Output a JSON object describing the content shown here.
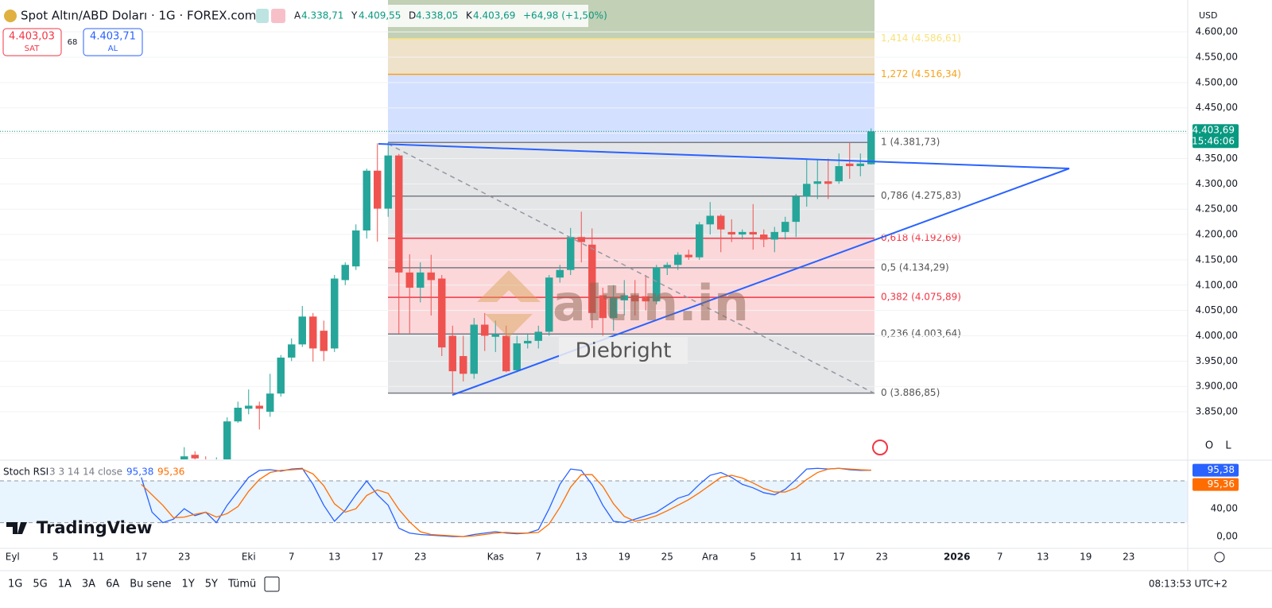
{
  "header": {
    "symbol": "Spot Altın/ABD Doları · 1G · FOREX.com",
    "ohlc": [
      "A",
      "4.338,71",
      "Y",
      "4.409,55",
      "D",
      "4.338,05",
      "K",
      "4.403,69"
    ],
    "change": "+64,98 (+1,50%)",
    "sell": {
      "price": "4.403,03",
      "label": "SAT"
    },
    "spread": "68",
    "buy": {
      "price": "4.403,71",
      "label": "AL"
    },
    "currency": "USD",
    "buttons": [
      "O",
      "L"
    ]
  },
  "watermark": {
    "brand": "altın.in",
    "author": "Diebright",
    "logo": "TradingView"
  },
  "toolbar": {
    "ranges": [
      "1G",
      "5G",
      "1A",
      "3A",
      "6A",
      "Bu sene",
      "1Y",
      "5Y",
      "Tümü"
    ],
    "clock": "08:13:53 UTC+2"
  },
  "chart_data": [
    {
      "type": "candlestick",
      "up_color": "#26a69a",
      "down_color": "#ef5350",
      "ylim": [
        3756,
        4663
      ],
      "grid": true,
      "yticks": [
        {
          "value": 3850,
          "label": "3.850,00"
        },
        {
          "value": 3900,
          "label": "3.900,00"
        },
        {
          "value": 3950,
          "label": "3.950,00"
        },
        {
          "value": 4000,
          "label": "4.000,00"
        },
        {
          "value": 4050,
          "label": "4.050,00"
        },
        {
          "value": 4100,
          "label": "4.100,00"
        },
        {
          "value": 4150,
          "label": "4.150,00"
        },
        {
          "value": 4200,
          "label": "4.200,00"
        },
        {
          "value": 4250,
          "label": "4.250,00"
        },
        {
          "value": 4300,
          "label": "4.300,00"
        },
        {
          "value": 4350,
          "label": "4.350,00"
        },
        {
          "value": 4400,
          "label": "4.400,00"
        },
        {
          "value": 4450,
          "label": "4.450,00"
        },
        {
          "value": 4500,
          "label": "4.500,00"
        },
        {
          "value": 4550,
          "label": "4.550,00"
        },
        {
          "value": 4600,
          "label": "4.600,00"
        }
      ],
      "categories": [
        "Eyl",
        null,
        null,
        null,
        "5",
        null,
        null,
        null,
        "11",
        null,
        null,
        null,
        "17",
        null,
        null,
        null,
        "23",
        null,
        null,
        null,
        null,
        null,
        "Eki",
        null,
        null,
        null,
        "7",
        null,
        null,
        null,
        "13",
        null,
        null,
        null,
        "17",
        null,
        null,
        null,
        "23",
        null,
        null,
        null,
        null,
        null,
        null,
        "Kas",
        null,
        null,
        null,
        "7",
        null,
        null,
        null,
        "13",
        null,
        null,
        null,
        "19",
        null,
        null,
        null,
        "25",
        null,
        null,
        null,
        "Ara",
        null,
        null,
        null,
        "5",
        null,
        null,
        null,
        "11",
        null,
        null,
        null,
        "17",
        null,
        null,
        null,
        "23",
        null,
        null,
        null,
        null,
        null,
        null,
        "2026",
        null,
        null,
        null,
        "7",
        null,
        null,
        null,
        "13",
        null,
        null,
        null,
        "19",
        null,
        null,
        null,
        "23",
        null,
        null,
        null,
        null,
        null
      ],
      "ohlc": [
        null,
        null,
        null,
        null,
        null,
        null,
        null,
        null,
        null,
        null,
        null,
        null,
        null,
        null,
        null,
        null,
        [
          3755,
          3780,
          3745,
          3762
        ],
        [
          3765,
          3772,
          3750,
          3758
        ],
        [
          3752,
          3762,
          3740,
          3748
        ],
        [
          3748,
          3760,
          3735,
          3755
        ],
        [
          3756,
          3839,
          3750,
          3831
        ],
        [
          3831,
          3870,
          3828,
          3858
        ],
        [
          3856,
          3894,
          3845,
          3862
        ],
        [
          3862,
          3870,
          3815,
          3856
        ],
        [
          3850,
          3925,
          3840,
          3886
        ],
        [
          3886,
          3962,
          3880,
          3957
        ],
        [
          3957,
          3995,
          3950,
          3983
        ],
        [
          3983,
          4059,
          3978,
          4038
        ],
        [
          4038,
          4045,
          3949,
          3975
        ],
        [
          4010,
          4030,
          3950,
          3970
        ],
        [
          3975,
          4120,
          3968,
          4113
        ],
        [
          4110,
          4145,
          4100,
          4140
        ],
        [
          4137,
          4220,
          4130,
          4208
        ],
        [
          4208,
          4330,
          4192,
          4326
        ],
        [
          4326,
          4380,
          4186,
          4251
        ],
        [
          4251,
          4381.73,
          4235,
          4356
        ],
        [
          4356,
          4359,
          4004,
          4125
        ],
        [
          4125,
          4161,
          4005,
          4095
        ],
        [
          4095,
          4145,
          4066,
          4125
        ],
        [
          4125,
          4160,
          4040,
          4110
        ],
        [
          4113,
          4120,
          3960,
          3977
        ],
        [
          4000,
          4020,
          3886.85,
          3930
        ],
        [
          3960,
          4000,
          3910,
          3925
        ],
        [
          3925,
          4035,
          3915,
          4022
        ],
        [
          4022,
          4045,
          3970,
          4000
        ],
        [
          3998,
          4030,
          3968,
          4003
        ],
        [
          4000,
          4020,
          3928,
          3930
        ],
        [
          3932,
          4000,
          3928,
          3985
        ],
        [
          3985,
          4005,
          3975,
          3990
        ],
        [
          3990,
          4020,
          3975,
          4008
        ],
        [
          4008,
          4120,
          4000,
          4115
        ],
        [
          4115,
          4140,
          4105,
          4130
        ],
        [
          4130,
          4213,
          4120,
          4195
        ],
        [
          4195,
          4245,
          4145,
          4185
        ],
        [
          4180,
          4212,
          4015,
          4045
        ],
        [
          4080,
          4095,
          4000,
          4035
        ],
        [
          4035,
          4100,
          4010,
          4075
        ],
        [
          4070,
          4110,
          4040,
          4080
        ],
        [
          4080,
          4110,
          4040,
          4068
        ],
        [
          4078,
          4120,
          4050,
          4068
        ],
        [
          4068,
          4140,
          4062,
          4135
        ],
        [
          4135,
          4145,
          4120,
          4140
        ],
        [
          4140,
          4165,
          4130,
          4160
        ],
        [
          4160,
          4170,
          4150,
          4155
        ],
        [
          4155,
          4225,
          4150,
          4220
        ],
        [
          4220,
          4264,
          4200,
          4237
        ],
        [
          4237,
          4240,
          4165,
          4210
        ],
        [
          4205,
          4230,
          4185,
          4200
        ],
        [
          4200,
          4210,
          4190,
          4205
        ],
        [
          4205,
          4260,
          4170,
          4200
        ],
        [
          4200,
          4210,
          4175,
          4190
        ],
        [
          4190,
          4215,
          4165,
          4205
        ],
        [
          4205,
          4235,
          4190,
          4225
        ],
        [
          4225,
          4280,
          4195,
          4275
        ],
        [
          4275,
          4350,
          4255,
          4300
        ],
        [
          4300,
          4348,
          4270,
          4305
        ],
        [
          4305,
          4350,
          4270,
          4300
        ],
        [
          4305,
          4360,
          4300,
          4335
        ],
        [
          4340,
          4381,
          4310,
          4335
        ],
        [
          4335,
          4360,
          4315,
          4340
        ],
        [
          4338.71,
          4409.55,
          4338.05,
          4403.69
        ],
        null,
        null,
        null,
        null,
        null,
        null,
        null,
        null,
        null,
        null,
        null,
        null,
        null,
        null,
        null,
        null,
        null,
        null,
        null,
        null,
        null,
        null,
        null,
        null,
        null,
        null,
        null,
        null,
        null
      ],
      "price_tag": {
        "value": 4403.69,
        "label": "4.403,69",
        "time": "15:46:06",
        "color": "#089981"
      },
      "fib_levels": [
        {
          "value": 3886.85,
          "label": "0 (3.886,85)",
          "line_color": "#787b86",
          "zone_color": "rgba(120,123,134,0.2)"
        },
        {
          "value": 4003.64,
          "label": "0,236 (4.003,64)",
          "line_color": "#787b86",
          "zone_color": "rgba(242,54,69,0.2)"
        },
        {
          "value": 4075.89,
          "label": "0,382 (4.075,89)",
          "line_color": "#f23645",
          "zone_color": "rgba(242,54,69,0.2)"
        },
        {
          "value": 4134.29,
          "label": "0,5 (4.134,29)",
          "line_color": "#787b86",
          "zone_color": "rgba(242,54,69,0.2)"
        },
        {
          "value": 4192.69,
          "label": "0,618 (4.192,69)",
          "line_color": "#f23645",
          "zone_color": "rgba(120,123,134,0.2)"
        },
        {
          "value": 4275.83,
          "label": "0,786 (4.275,83)",
          "line_color": "#787b86",
          "zone_color": "rgba(120,123,134,0.2)"
        },
        {
          "value": 4381.73,
          "label": "1 (4.381,73)",
          "line_color": "#787b86",
          "zone_color": "rgba(41,98,255,0.2)"
        },
        {
          "value": 4516.34,
          "label": "1,272 (4.516,34)",
          "line_color": "#f7a21b",
          "zone_color": "rgba(201,160,80,0.3)"
        },
        {
          "value": 4586.61,
          "label": "1,414 (4.586,61)",
          "line_color": "#f8e27a",
          "zone_color": "rgba(120,150,90,0.45)"
        }
      ]
    },
    {
      "type": "line",
      "title": "Stoch RSI",
      "params": "3 3 14 14 close",
      "ylim": [
        -17,
        108.6
      ],
      "yticks": [
        {
          "value": 0,
          "label": "0,00"
        },
        {
          "value": 40,
          "label": "40,00"
        }
      ],
      "band_levels": [
        20,
        80
      ],
      "series": [
        {
          "name": "95,38",
          "color": "#2962ff",
          "values": [
            null,
            null,
            null,
            null,
            null,
            null,
            null,
            null,
            null,
            null,
            null,
            null,
            85,
            35,
            20,
            25,
            40,
            30,
            35,
            20,
            45,
            65,
            85,
            95,
            96,
            94,
            97,
            98,
            75,
            45,
            22,
            38,
            60,
            80,
            60,
            45,
            12,
            5,
            3,
            2,
            1,
            0,
            0,
            3,
            5,
            7,
            5,
            4,
            5,
            10,
            40,
            75,
            97,
            95,
            75,
            45,
            22,
            20,
            25,
            30,
            35,
            45,
            55,
            60,
            75,
            88,
            92,
            85,
            75,
            70,
            63,
            60,
            68,
            82,
            97,
            98,
            97,
            98,
            96,
            95,
            95.38,
            null,
            null,
            null,
            null,
            null,
            null,
            null,
            null,
            null,
            null,
            null,
            null,
            null,
            null,
            null,
            null,
            null,
            null,
            null,
            null,
            null,
            null,
            null,
            null,
            null,
            null,
            null,
            null,
            null
          ]
        },
        {
          "name": "95,36",
          "color": "#ff6d00",
          "values": [
            null,
            null,
            null,
            null,
            null,
            null,
            null,
            null,
            null,
            null,
            null,
            null,
            75,
            60,
            45,
            27,
            28,
            32,
            35,
            28,
            33,
            43,
            65,
            82,
            92,
            95,
            96,
            97,
            90,
            73,
            47,
            35,
            40,
            59,
            67,
            62,
            39,
            21,
            7,
            3,
            2,
            1,
            0,
            1,
            3,
            5,
            6,
            5,
            5,
            6,
            18,
            42,
            71,
            89,
            89,
            72,
            47,
            29,
            22,
            25,
            30,
            37,
            45,
            53,
            63,
            74,
            85,
            88,
            84,
            77,
            69,
            64,
            64,
            70,
            82,
            92,
            97,
            98,
            97,
            96,
            95.36,
            null,
            null,
            null,
            null,
            null,
            null,
            null,
            null,
            null,
            null,
            null,
            null,
            null,
            null,
            null,
            null,
            null,
            null,
            null,
            null,
            null,
            null,
            null,
            null,
            null,
            null,
            null,
            null,
            null
          ]
        }
      ]
    }
  ]
}
